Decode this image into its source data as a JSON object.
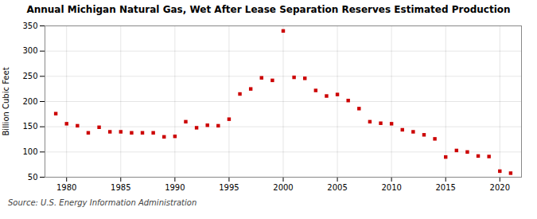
{
  "chart_data": {
    "type": "scatter",
    "title": "Annual Michigan Natural Gas, Wet After Lease Separation Reserves Estimated Production",
    "ylabel": "Billion Cubic Feet",
    "annotations": [
      "Source: U.S. Energy Information Administration"
    ],
    "x": [
      1979,
      1980,
      1981,
      1982,
      1983,
      1984,
      1985,
      1986,
      1987,
      1988,
      1989,
      1990,
      1991,
      1992,
      1993,
      1994,
      1995,
      1996,
      1997,
      1998,
      1999,
      2000,
      2001,
      2002,
      2003,
      2004,
      2005,
      2006,
      2007,
      2008,
      2009,
      2010,
      2011,
      2012,
      2013,
      2014,
      2015,
      2016,
      2017,
      2018,
      2019,
      2020,
      2021
    ],
    "values": [
      176,
      156,
      152,
      138,
      149,
      140,
      140,
      138,
      138,
      138,
      130,
      131,
      160,
      148,
      153,
      152,
      165,
      215,
      225,
      247,
      242,
      340,
      248,
      246,
      222,
      211,
      214,
      202,
      186,
      160,
      157,
      156,
      144,
      140,
      134,
      126,
      90,
      103,
      100,
      92,
      91,
      62,
      58
    ],
    "color": "#cc0000",
    "marker": "square",
    "xlim": [
      1978,
      2022
    ],
    "ylim": [
      50,
      350
    ],
    "xticks": [
      1980,
      1985,
      1990,
      1995,
      2000,
      2005,
      2010,
      2015,
      2020
    ],
    "yticks": [
      50,
      100,
      150,
      200,
      250,
      300,
      350
    ],
    "grid": true
  }
}
